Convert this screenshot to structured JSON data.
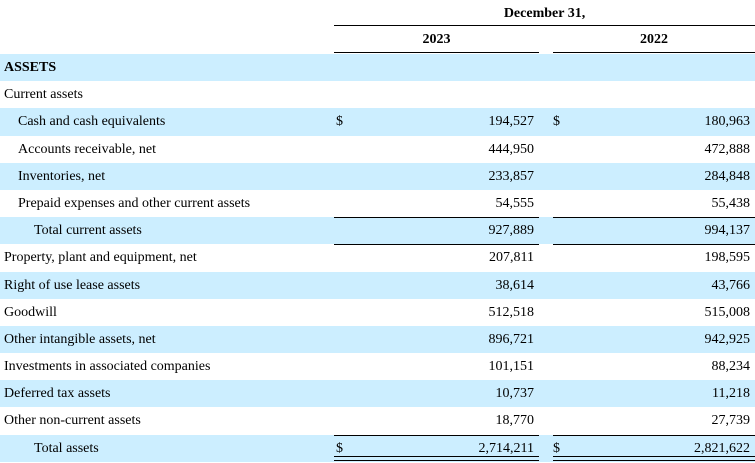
{
  "header": {
    "period": "December 31,",
    "year_a": "2023",
    "year_b": "2022"
  },
  "colors": {
    "row_shade": "#cceeff",
    "text": "#000000"
  },
  "rows": [
    {
      "label": "ASSETS",
      "style": "bold",
      "indent": 0,
      "shaded": true,
      "cur_a": "",
      "a": "",
      "cur_b": "",
      "b": "",
      "top_rule": false,
      "double_rule": false
    },
    {
      "label": "Current assets",
      "style": "normal",
      "indent": 0,
      "shaded": false,
      "cur_a": "",
      "a": "",
      "cur_b": "",
      "b": "",
      "top_rule": false,
      "double_rule": false
    },
    {
      "label": "Cash and cash equivalents",
      "style": "normal",
      "indent": 1,
      "shaded": true,
      "cur_a": "$",
      "a": "194,527",
      "cur_b": "$",
      "b": "180,963",
      "top_rule": false,
      "double_rule": false
    },
    {
      "label": "Accounts receivable, net",
      "style": "normal",
      "indent": 1,
      "shaded": false,
      "cur_a": "",
      "a": "444,950",
      "cur_b": "",
      "b": "472,888",
      "top_rule": false,
      "double_rule": false
    },
    {
      "label": "Inventories, net",
      "style": "normal",
      "indent": 1,
      "shaded": true,
      "cur_a": "",
      "a": "233,857",
      "cur_b": "",
      "b": "284,848",
      "top_rule": false,
      "double_rule": false
    },
    {
      "label": "Prepaid expenses and other current assets",
      "style": "normal",
      "indent": 1,
      "shaded": false,
      "cur_a": "",
      "a": "54,555",
      "cur_b": "",
      "b": "55,438",
      "top_rule": false,
      "double_rule": false
    },
    {
      "label": "Total current assets",
      "style": "normal",
      "indent": 2,
      "shaded": true,
      "cur_a": "",
      "a": "927,889",
      "cur_b": "",
      "b": "994,137",
      "top_rule": true,
      "double_rule": false
    },
    {
      "label": "Property, plant and equipment, net",
      "style": "normal",
      "indent": 0,
      "shaded": false,
      "cur_a": "",
      "a": "207,811",
      "cur_b": "",
      "b": "198,595",
      "top_rule": true,
      "double_rule": false
    },
    {
      "label": "Right of use lease assets",
      "style": "normal",
      "indent": 0,
      "shaded": true,
      "cur_a": "",
      "a": "38,614",
      "cur_b": "",
      "b": "43,766",
      "top_rule": false,
      "double_rule": false
    },
    {
      "label": "Goodwill",
      "style": "normal",
      "indent": 0,
      "shaded": false,
      "cur_a": "",
      "a": "512,518",
      "cur_b": "",
      "b": "515,008",
      "top_rule": false,
      "double_rule": false
    },
    {
      "label": "Other intangible assets, net",
      "style": "normal",
      "indent": 0,
      "shaded": true,
      "cur_a": "",
      "a": "896,721",
      "cur_b": "",
      "b": "942,925",
      "top_rule": false,
      "double_rule": false
    },
    {
      "label": "Investments in associated companies",
      "style": "normal",
      "indent": 0,
      "shaded": false,
      "cur_a": "",
      "a": "101,151",
      "cur_b": "",
      "b": "88,234",
      "top_rule": false,
      "double_rule": false
    },
    {
      "label": "Deferred tax assets",
      "style": "normal",
      "indent": 0,
      "shaded": true,
      "cur_a": "",
      "a": "10,737",
      "cur_b": "",
      "b": "11,218",
      "top_rule": false,
      "double_rule": false
    },
    {
      "label": "Other non-current assets",
      "style": "normal",
      "indent": 0,
      "shaded": false,
      "cur_a": "",
      "a": "18,770",
      "cur_b": "",
      "b": "27,739",
      "top_rule": false,
      "double_rule": false
    },
    {
      "label": "Total assets",
      "style": "normal",
      "indent": 2,
      "shaded": true,
      "cur_a": "$",
      "a": "2,714,211",
      "cur_b": "$",
      "b": "2,821,622",
      "top_rule": true,
      "double_rule": true
    }
  ]
}
